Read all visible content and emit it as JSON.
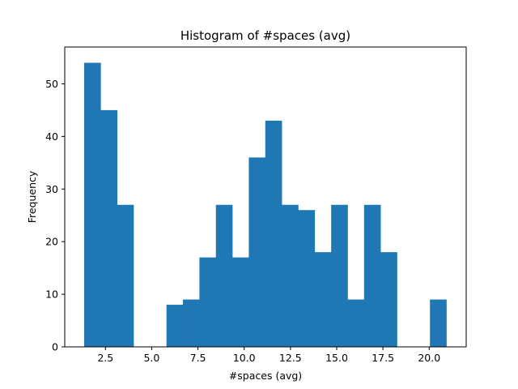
{
  "chart_data": {
    "type": "bar",
    "title": "Histogram of #spaces (avg)",
    "xlabel": "#spaces (avg)",
    "ylabel": "Frequency",
    "xlim": [
      0.3,
      22.0
    ],
    "ylim": [
      0,
      57
    ],
    "bin_width": 0.89,
    "bin_start": 1.35,
    "values": [
      54,
      45,
      27,
      0,
      0,
      8,
      9,
      17,
      27,
      17,
      36,
      43,
      27,
      26,
      18,
      27,
      9,
      27,
      18,
      0,
      0,
      9
    ],
    "x_ticks": [
      2.5,
      5.0,
      7.5,
      10.0,
      12.5,
      15.0,
      17.5,
      20.0
    ],
    "x_tick_labels": [
      "2.5",
      "5.0",
      "7.5",
      "10.0",
      "12.5",
      "15.0",
      "17.5",
      "20.0"
    ],
    "y_ticks": [
      0,
      10,
      20,
      30,
      40,
      50
    ],
    "y_tick_labels": [
      "0",
      "10",
      "20",
      "30",
      "40",
      "50"
    ],
    "bar_color": "#1f77b4",
    "grid": false,
    "legend": "none"
  }
}
